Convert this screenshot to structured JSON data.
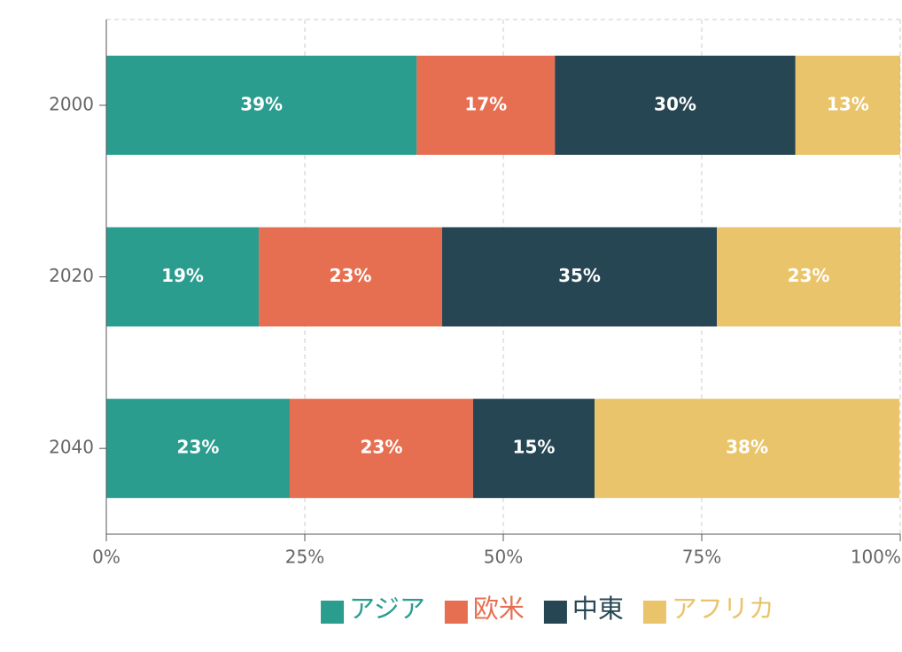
{
  "chart_data": {
    "type": "bar",
    "orientation": "horizontal",
    "stacked": true,
    "categories": [
      "2000",
      "2020",
      "2040"
    ],
    "series": [
      {
        "name": "アジア",
        "color": "#2a9d8f",
        "values": [
          39.1,
          19.2,
          23.1
        ],
        "value_labels": [
          "39%",
          "19%",
          "23%"
        ]
      },
      {
        "name": "欧米",
        "color": "#e76f51",
        "values": [
          17.4,
          23.1,
          23.1
        ],
        "value_labels": [
          "17%",
          "23%",
          "23%"
        ]
      },
      {
        "name": "中東",
        "color": "#264653",
        "values": [
          30.3,
          34.6,
          15.3
        ],
        "value_labels": [
          "30%",
          "35%",
          "15%"
        ]
      },
      {
        "name": "アフリカ",
        "color": "#e9c46a",
        "values": [
          13.2,
          23.1,
          38.4
        ],
        "value_labels": [
          "13%",
          "23%",
          "38%"
        ]
      }
    ],
    "xlim": [
      0,
      100
    ],
    "xticks": [
      {
        "value": 0,
        "label": "0%"
      },
      {
        "value": 25,
        "label": "25%"
      },
      {
        "value": 50,
        "label": "50%"
      },
      {
        "value": 75,
        "label": "75%"
      },
      {
        "value": 100,
        "label": "100%"
      }
    ],
    "grid": true,
    "legend": "bottom"
  }
}
